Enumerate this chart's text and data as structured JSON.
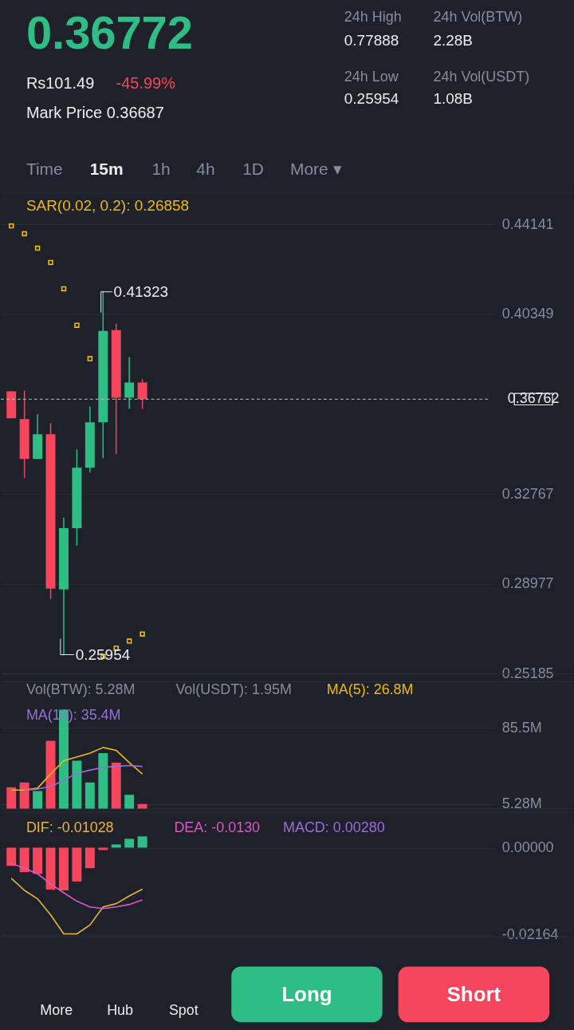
{
  "chart_data": [
    {
      "type": "other",
      "annotations": [
        "0.36772",
        "Rs101.49",
        "-45.99%",
        "Mark Price 0.36687",
        "24h High",
        "0.77888",
        "24h Low",
        "0.25954",
        "24h Vol(BTW)",
        "2.28B",
        "24h Vol(USDT)",
        "1.08B",
        "Time",
        "15m",
        "1h",
        "4h",
        "1D",
        "More ▾"
      ]
    },
    {
      "type": "candlestick",
      "categories": [
        null,
        null,
        null,
        null,
        null,
        null,
        null,
        null,
        null,
        null,
        null,
        null,
        null,
        null,
        null,
        null,
        null,
        null,
        null,
        null,
        null,
        null,
        null,
        null,
        null,
        null,
        null,
        null,
        null,
        null,
        null,
        null,
        null,
        null,
        null,
        null,
        null
      ],
      "ohlc": [
        [
          0.37096,
          0.37096,
          0.35955,
          0.35955
        ],
        [
          0.35921,
          0.37129,
          0.33438,
          0.34244
        ],
        [
          0.34244,
          0.36123,
          0.34244,
          0.35284
        ],
        [
          0.35284,
          0.35753,
          0.28339,
          0.28775
        ],
        [
          0.28742,
          0.31761,
          0.25954,
          0.31325
        ],
        [
          0.31325,
          0.34646,
          0.30587,
          0.33875
        ],
        [
          0.33875,
          0.36458,
          0.33673,
          0.35787
        ],
        [
          0.35787,
          0.41323,
          0.34277,
          0.39645
        ],
        [
          0.39679,
          0.39947,
          0.34445,
          0.36827
        ],
        [
          0.36827,
          0.38538,
          0.36357,
          0.37465
        ],
        [
          0.37465,
          0.37599,
          0.36357,
          0.36762
        ],
        null,
        null,
        null,
        null,
        null,
        null,
        null,
        null,
        null,
        null,
        null,
        null,
        null,
        null,
        null,
        null,
        null,
        null,
        null,
        null,
        null,
        null,
        null,
        null,
        null,
        null
      ],
      "colors": [
        "#f6465d",
        "#f6465d",
        "#2ebd85",
        "#f6465d",
        "#2ebd85",
        "#2ebd85",
        "#2ebd85",
        "#2ebd85",
        "#f6465d",
        "#2ebd85",
        "#f6465d",
        null,
        null,
        null,
        null,
        null,
        null,
        null,
        null,
        null,
        null,
        null,
        null,
        null,
        null,
        null,
        null,
        null,
        null,
        null,
        null,
        null,
        null,
        null,
        null,
        null,
        null
      ],
      "series": [
        {
          "type": "scatter",
          "marker": "square",
          "color": "#f0b90b",
          "values": [
            0.4407,
            0.4374,
            0.4313,
            0.4253,
            0.4142,
            0.3988,
            0.3847,
            0.2592,
            0.2626,
            0.2656,
            0.2686,
            null,
            null,
            null,
            null,
            null,
            null,
            null,
            null,
            null,
            null,
            null,
            null,
            null,
            null,
            null,
            null,
            null,
            null,
            null,
            null,
            null,
            null,
            null,
            null,
            null,
            null
          ]
        }
      ],
      "ylim": [
        0.25185,
        0.45449
      ],
      "yticks": [
        0.44141,
        0.40349,
        0.32767,
        0.28977,
        0.25185
      ],
      "grid": "y",
      "tick_labels": "y",
      "ref_lines": [
        {
          "axis": "y",
          "value": 0.36762,
          "label": "0.36762",
          "line_style": "dashed",
          "color": "#b7bdc6"
        }
      ],
      "annotations": [
        "SAR(0.02, 0.2): 0.26858",
        "0.41323",
        "0.25954"
      ]
    },
    {
      "type": "bar",
      "categories": [
        null,
        null,
        null,
        null,
        null,
        null,
        null,
        null,
        null,
        null,
        null,
        null,
        null,
        null,
        null,
        null,
        null,
        null,
        null,
        null,
        null,
        null,
        null,
        null,
        null,
        null,
        null,
        null,
        null,
        null,
        null,
        null,
        null,
        null,
        null,
        null,
        null
      ],
      "series": [
        {
          "type": "bar",
          "colors": [
            "#f6465d",
            "#f6465d",
            "#2ebd85",
            "#f6465d",
            "#2ebd85",
            "#2ebd85",
            "#2ebd85",
            "#2ebd85",
            "#f6465d",
            "#2ebd85",
            "#f6465d",
            null,
            null,
            null,
            null,
            null,
            null,
            null,
            null,
            null,
            null,
            null,
            null,
            null,
            null,
            null,
            null,
            null,
            null,
            null,
            null,
            null,
            null,
            null,
            null,
            null,
            null
          ],
          "values": [
            23,
            28,
            19,
            72,
            105,
            51,
            28,
            59,
            49,
            15,
            5.28,
            null,
            null,
            null,
            null,
            null,
            null,
            null,
            null,
            null,
            null,
            null,
            null,
            null,
            null,
            null,
            null,
            null,
            null,
            null,
            null,
            null,
            null,
            null,
            null,
            null,
            null
          ]
        },
        {
          "type": "line",
          "color": "#f0b90b",
          "values": [
            20,
            20,
            22,
            37,
            51,
            55,
            59,
            65,
            62,
            49,
            37,
            null,
            null,
            null,
            null,
            null,
            null,
            null,
            null,
            null,
            null,
            null,
            null,
            null,
            null,
            null,
            null,
            null,
            null,
            null,
            null,
            null,
            null,
            null,
            null,
            null,
            null
          ]
        },
        {
          "type": "line",
          "color": "#9b6ddb",
          "values": [
            null,
            20,
            21,
            24,
            30,
            38,
            41,
            44,
            45,
            46,
            45,
            null,
            null,
            null,
            null,
            null,
            null,
            null,
            null,
            null,
            null,
            null,
            null,
            null,
            null,
            null,
            null,
            null,
            null,
            null,
            null,
            null,
            null,
            null,
            null,
            null,
            null
          ]
        }
      ],
      "ylim": [
        0,
        134.5
      ],
      "yticks": [
        {
          "value": 85.5,
          "label": "85.5M"
        },
        {
          "value": 5.28,
          "label": "5.28M"
        }
      ],
      "grid": "y",
      "tick_labels": "y",
      "annotations": [
        "Vol(BTW): 5.28M",
        "Vol(USDT): 1.95M",
        "MA(5): 26.8M",
        "MA(10): 35.4M"
      ]
    },
    {
      "type": "bar",
      "categories": [
        null,
        null,
        null,
        null,
        null,
        null,
        null,
        null,
        null,
        null,
        null,
        null,
        null,
        null,
        null,
        null,
        null,
        null,
        null,
        null,
        null,
        null,
        null,
        null,
        null,
        null,
        null,
        null,
        null,
        null,
        null,
        null,
        null,
        null,
        null,
        null,
        null
      ],
      "series": [
        {
          "type": "bar",
          "colors": [
            "#f6465d",
            "#f6465d",
            "#f6465d",
            "#f6465d",
            "#f6465d",
            "#f6465d",
            "#f6465d",
            "#f6465d",
            "#2ebd85",
            "#2ebd85",
            "#2ebd85",
            null,
            null,
            null,
            null,
            null,
            null,
            null,
            null,
            null,
            null,
            null,
            null,
            null,
            null,
            null,
            null,
            null,
            null,
            null,
            null,
            null,
            null,
            null,
            null,
            null,
            null
          ],
          "values": [
            -0.0045,
            -0.0061,
            -0.0065,
            -0.0104,
            -0.0106,
            -0.0084,
            -0.0051,
            -0.0006,
            0.0008,
            0.0022,
            0.0028,
            null,
            null,
            null,
            null,
            null,
            null,
            null,
            null,
            null,
            null,
            null,
            null,
            null,
            null,
            null,
            null,
            null,
            null,
            null,
            null,
            null,
            null,
            null,
            null,
            null,
            null
          ]
        },
        {
          "type": "line",
          "color": "#e8b53a",
          "values": [
            -0.0076,
            -0.0106,
            -0.0127,
            -0.0167,
            -0.0214,
            -0.0214,
            -0.0192,
            -0.0147,
            -0.0139,
            -0.012,
            -0.0103,
            null,
            null,
            null,
            null,
            null,
            null,
            null,
            null,
            null,
            null,
            null,
            null,
            null,
            null,
            null,
            null,
            null,
            null,
            null,
            null,
            null,
            null,
            null,
            null,
            null,
            null
          ]
        },
        {
          "type": "line",
          "color": "#d958c7",
          "values": [
            -0.0039,
            -0.0051,
            -0.0065,
            -0.009,
            -0.0112,
            -0.0133,
            -0.0147,
            -0.0151,
            -0.0147,
            -0.0141,
            -0.013,
            null,
            null,
            null,
            null,
            null,
            null,
            null,
            null,
            null,
            null,
            null,
            null,
            null,
            null,
            null,
            null,
            null,
            null,
            null,
            null,
            null,
            null,
            null,
            null,
            null,
            null
          ]
        }
      ],
      "ylim": [
        -0.0222,
        0.0088
      ],
      "yticks": [
        {
          "value": 0,
          "label": "0.00000"
        },
        -0.02164
      ],
      "grid": "y",
      "tick_labels": "y",
      "annotations": [
        "DIF: -0.01028",
        "DEA: -0.0130",
        "MACD: 0.00280"
      ]
    },
    {
      "type": "other",
      "annotations": [
        "More",
        "Hub",
        "Spot",
        "Long",
        "Short"
      ]
    }
  ]
}
